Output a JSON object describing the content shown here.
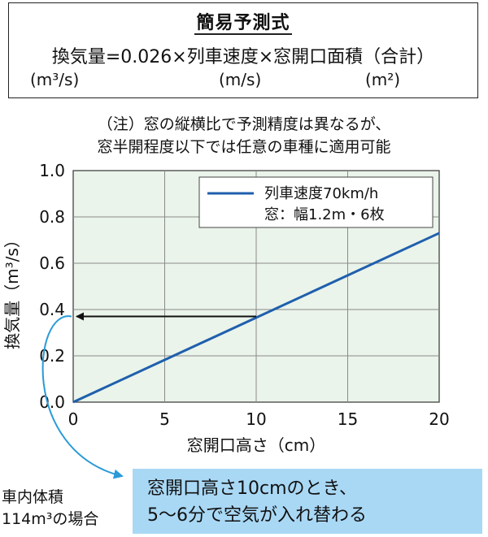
{
  "formula": {
    "title": "簡易予測式",
    "expression": "換気量=0.026×列車速度×窓開口面積（合計）",
    "unit_ventilation": "(m³/s)",
    "unit_speed": "(m/s)",
    "unit_area": "(m²)"
  },
  "notes": [
    "（注）窓の縦横比で予測精度は異なるが、",
    "窓半開程度以下では任意の車種に適用可能"
  ],
  "chart_data": {
    "type": "line",
    "xlabel": "窓開口高さ（cm）",
    "ylabel": "換気量（m³/s）",
    "xlim": [
      0,
      20
    ],
    "ylim": [
      0,
      1.0
    ],
    "x_ticks": [
      "0",
      "5",
      "10",
      "15",
      "20"
    ],
    "y_ticks": [
      "0.0",
      "0.2",
      "0.4",
      "0.6",
      "0.8",
      "1.0"
    ],
    "grid": true,
    "legend_position": "top-right",
    "legend": [
      "列車速度70km/h",
      "窓：幅1.2m・6枚"
    ],
    "series": [
      {
        "x": [
          0,
          20
        ],
        "y": [
          0,
          0.73
        ],
        "color": "#1f5fad"
      }
    ],
    "annotation_arrow": {
      "from": [
        10,
        0.37
      ],
      "to": [
        0,
        0.37
      ]
    }
  },
  "caption": {
    "line1": "車内体積",
    "line2": "114m³の場合"
  },
  "callout": {
    "line1": "窓開口高さ10cmのとき、",
    "line2": "5〜6分で空気が入れ替わる"
  },
  "colors": {
    "plot_bg": "#eaf4ea",
    "series": "#1f5fad",
    "callout_bg": "#a9d8f5",
    "curve_arrow": "#2a9ad8"
  }
}
